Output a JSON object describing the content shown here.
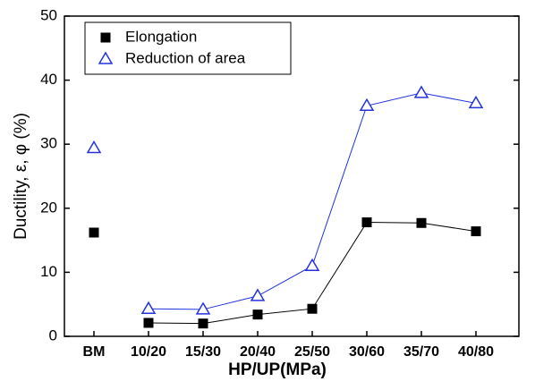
{
  "chart_data": {
    "type": "line",
    "x_label": "HP/UP(MPa)",
    "y_label": "Ductility, ε,  φ (%)",
    "categories": [
      "BM",
      "10/20",
      "15/30",
      "20/40",
      "25/50",
      "30/60",
      "35/70",
      "40/80"
    ],
    "line_from_index": 1,
    "series": [
      {
        "name": "Elongation",
        "color": "#000000",
        "marker": "square",
        "values": [
          16.2,
          2.1,
          2.0,
          3.4,
          4.3,
          17.8,
          17.7,
          16.4
        ]
      },
      {
        "name": "Reduction of area",
        "color": "#2233dd",
        "marker": "open-triangle",
        "values": [
          29.4,
          4.3,
          4.2,
          6.3,
          11.0,
          36.0,
          38.0,
          36.4
        ]
      }
    ],
    "ylim": [
      0,
      50
    ],
    "yticks": [
      0,
      10,
      20,
      30,
      40,
      50
    ],
    "legend": "upper left"
  }
}
